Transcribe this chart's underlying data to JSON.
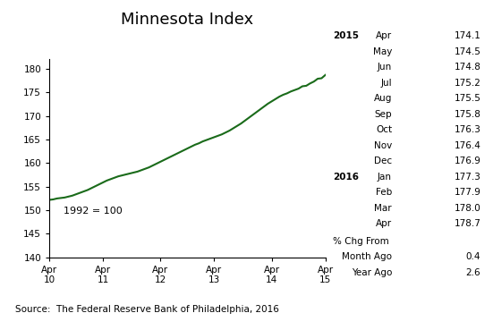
{
  "title": "Minnesota Index",
  "source": "Source:  The Federal Reserve Bank of Philadelphia, 2016",
  "annotation": "1992 = 100",
  "line_color": "#1a6b1a",
  "background_color": "#ffffff",
  "x_tick_labels": [
    "Apr\n10",
    "Apr\n11",
    "Apr\n12",
    "Apr\n13",
    "Apr\n14",
    "Apr\n15"
  ],
  "ylim": [
    140,
    182
  ],
  "yticks": [
    140,
    145,
    150,
    155,
    160,
    165,
    170,
    175,
    180
  ],
  "table_data": {
    "2015": {
      "Apr": 174.1,
      "May": 174.5,
      "Jun": 174.8,
      "Jul": 175.2,
      "Aug": 175.5,
      "Sep": 175.8,
      "Oct": 176.3,
      "Nov": 176.4,
      "Dec": 176.9
    },
    "2016": {
      "Jan": 177.3,
      "Feb": 177.9,
      "Mar": 178.0,
      "Apr": 178.7
    }
  },
  "pct_chg": {
    "Month Ago": 0.4,
    "Year Ago": 2.6
  },
  "y_values": [
    152.2,
    152.3,
    152.5,
    152.6,
    152.7,
    152.9,
    153.1,
    153.4,
    153.7,
    154.0,
    154.3,
    154.7,
    155.1,
    155.5,
    155.9,
    156.3,
    156.6,
    156.9,
    157.2,
    157.4,
    157.6,
    157.8,
    158.0,
    158.2,
    158.5,
    158.8,
    159.1,
    159.5,
    159.9,
    160.3,
    160.7,
    161.1,
    161.5,
    161.9,
    162.3,
    162.7,
    163.1,
    163.5,
    163.9,
    164.2,
    164.6,
    164.9,
    165.2,
    165.5,
    165.8,
    166.1,
    166.5,
    166.9,
    167.4,
    167.9,
    168.4,
    169.0,
    169.6,
    170.2,
    170.8,
    171.4,
    172.0,
    172.6,
    173.1,
    173.6,
    174.1,
    174.5,
    174.8,
    175.2,
    175.5,
    175.8,
    176.3,
    176.4,
    176.9,
    177.3,
    177.9,
    178.0,
    178.7
  ]
}
